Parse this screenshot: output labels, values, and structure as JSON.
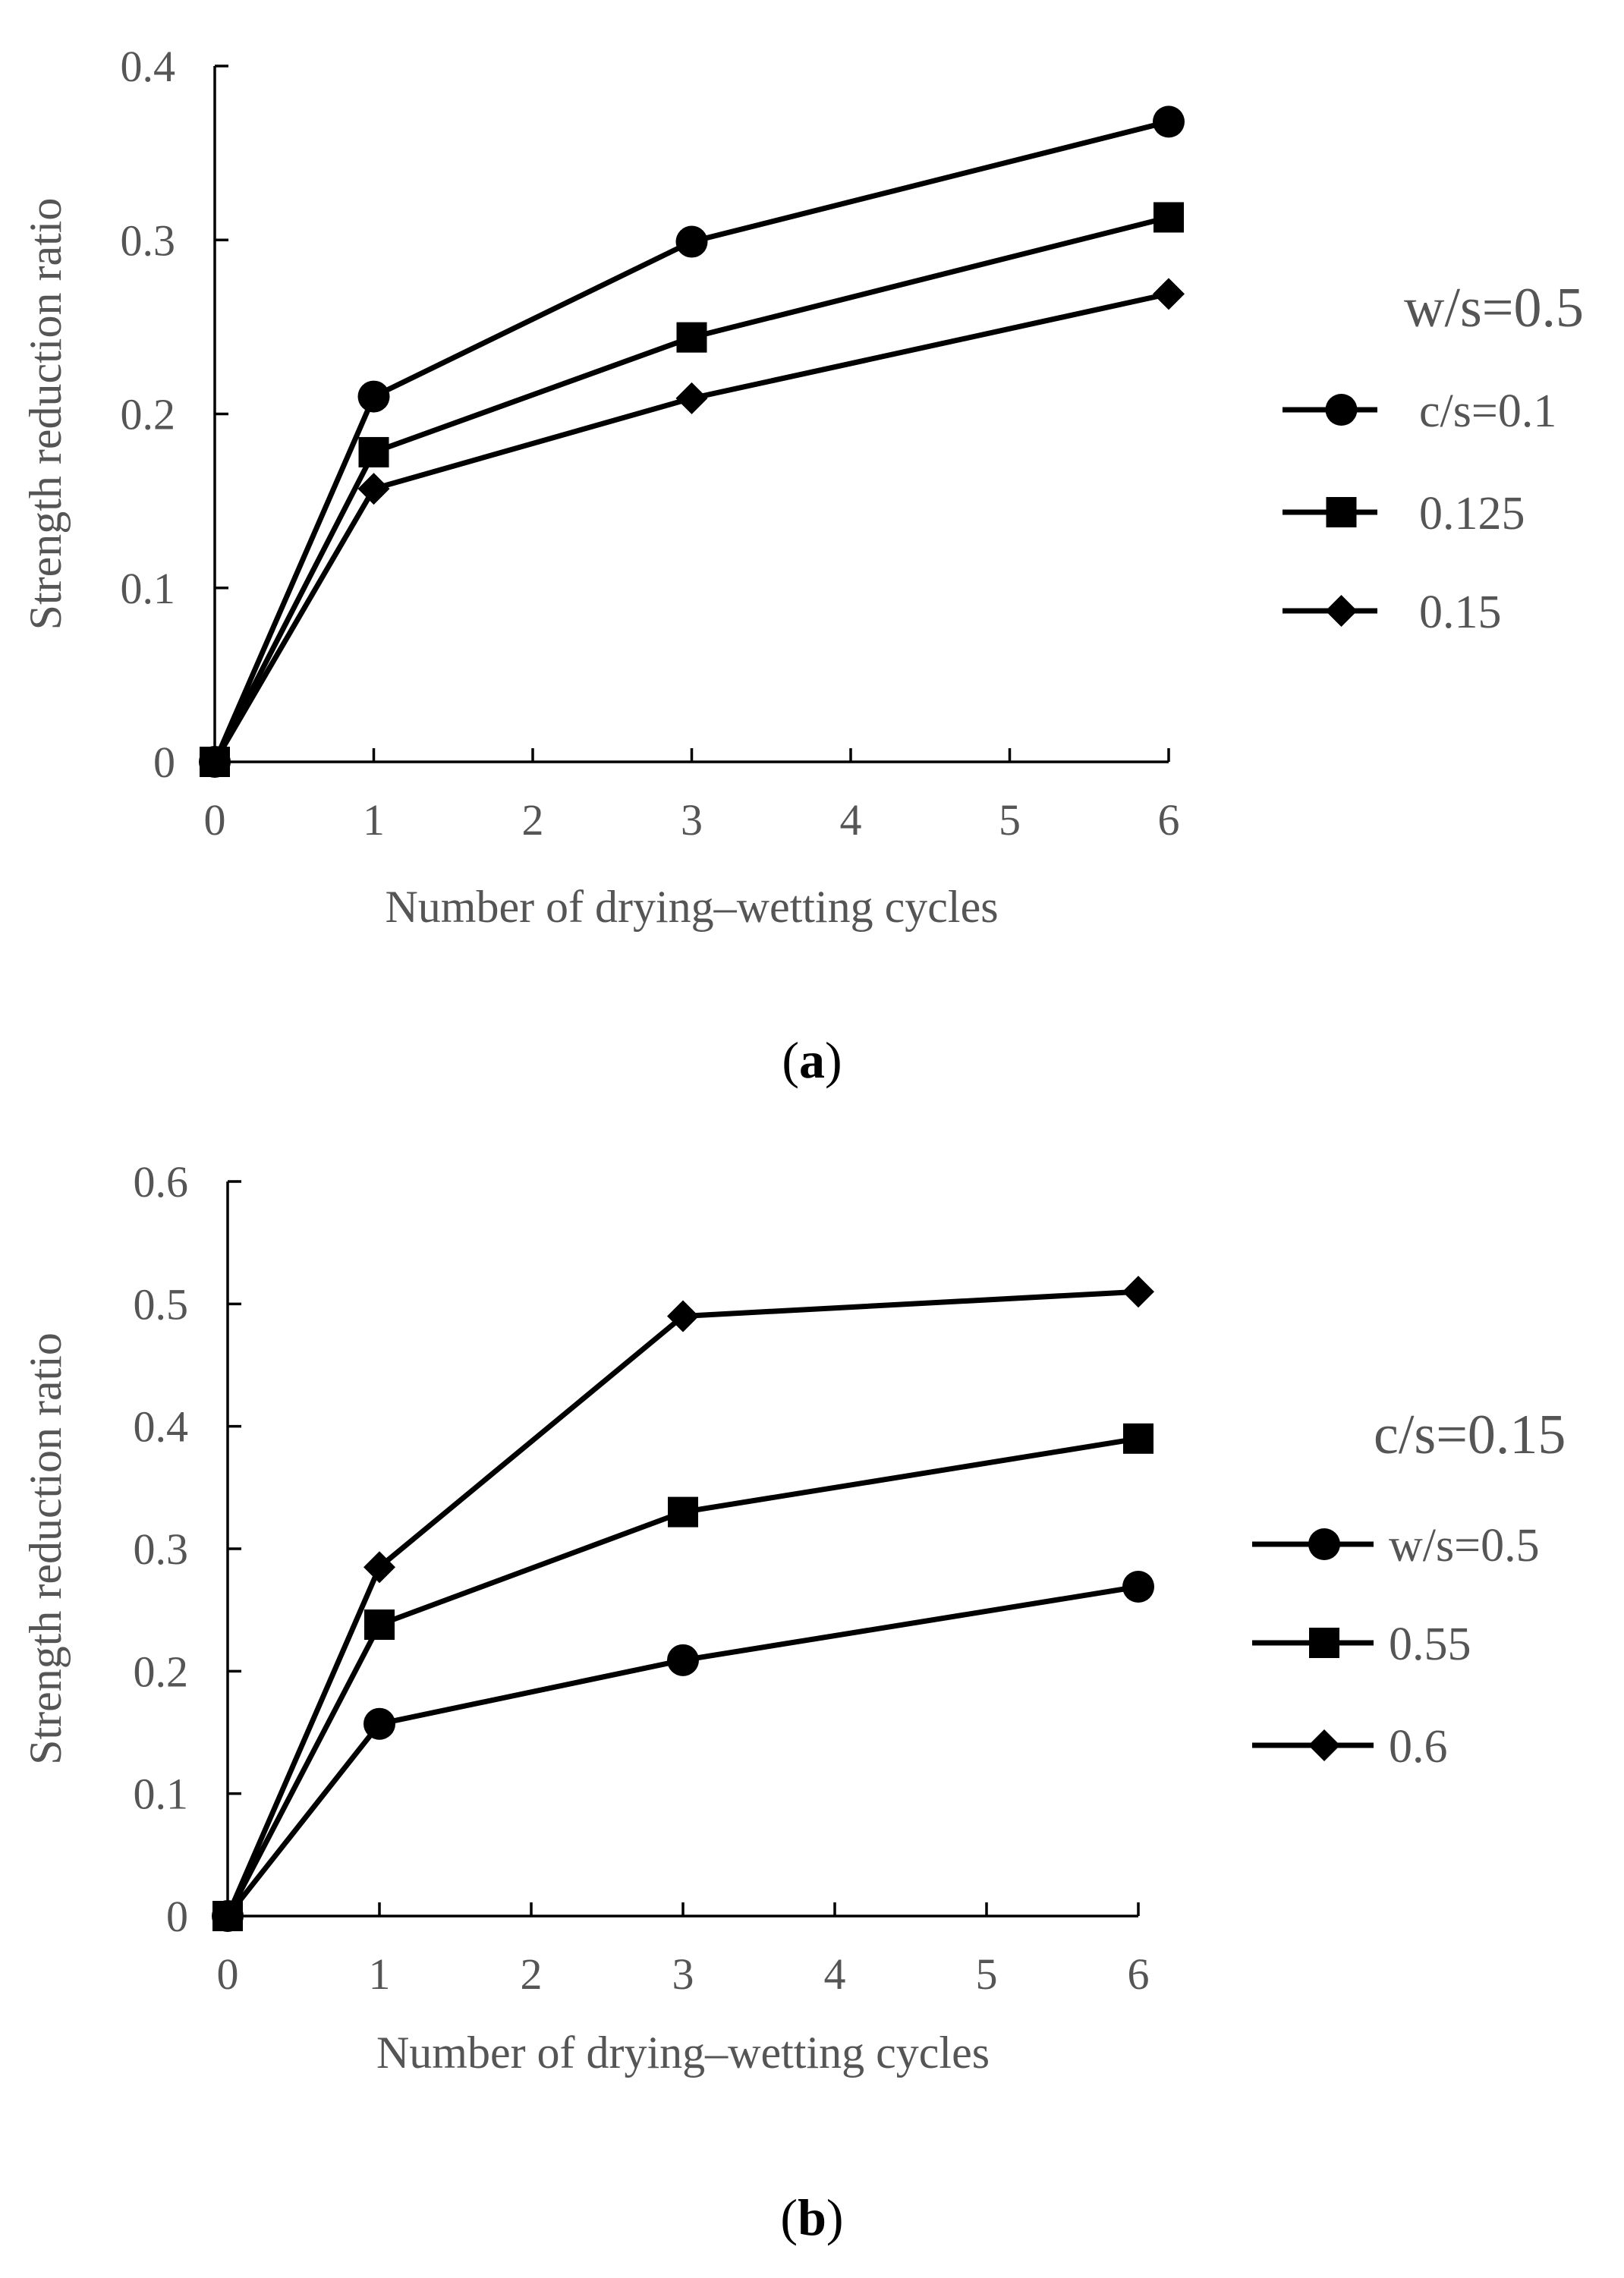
{
  "chart_data": [
    {
      "type": "line",
      "panel": "a",
      "caption": {
        "open": "(",
        "letter": "a",
        "close": ")"
      },
      "xlabel": "Number of drying–wetting cycles",
      "ylabel": "Strength reduction ratio",
      "xlim": [
        0,
        6
      ],
      "ylim": [
        0,
        0.4
      ],
      "xticks": [
        0,
        1,
        2,
        3,
        4,
        5,
        6
      ],
      "xtick_labels": [
        "0",
        "1",
        "2",
        "3",
        "4",
        "5",
        "6"
      ],
      "yticks": [
        0,
        0.1,
        0.2,
        0.3,
        0.4
      ],
      "ytick_labels": [
        "0",
        "0.1",
        "0.2",
        "0.3",
        "0.4"
      ],
      "legend_title": "w/s=0.5",
      "legend_position": "right",
      "series": [
        {
          "name": "c/s=0.1",
          "marker": "circle",
          "x": [
            0,
            1,
            3,
            6
          ],
          "y": [
            0,
            0.21,
            0.299,
            0.368
          ]
        },
        {
          "name": "0.125",
          "marker": "square",
          "x": [
            0,
            1,
            3,
            6
          ],
          "y": [
            0,
            0.178,
            0.244,
            0.313
          ]
        },
        {
          "name": "0.15",
          "marker": "diamond",
          "x": [
            0,
            1,
            3,
            6
          ],
          "y": [
            0,
            0.157,
            0.209,
            0.269
          ]
        }
      ]
    },
    {
      "type": "line",
      "panel": "b",
      "caption": {
        "open": "(",
        "letter": "b",
        "close": ")"
      },
      "xlabel": "Number of drying–wetting cycles",
      "ylabel": "Strength reduction ratio",
      "xlim": [
        0,
        6
      ],
      "ylim": [
        0,
        0.6
      ],
      "xticks": [
        0,
        1,
        2,
        3,
        4,
        5,
        6
      ],
      "xtick_labels": [
        "0",
        "1",
        "2",
        "3",
        "4",
        "5",
        "6"
      ],
      "yticks": [
        0,
        0.1,
        0.2,
        0.3,
        0.4,
        0.5,
        0.6
      ],
      "ytick_labels": [
        "0",
        "0.1",
        "0.2",
        "0.3",
        "0.4",
        "0.5",
        "0.6"
      ],
      "legend_title": "c/s=0.15",
      "legend_position": "right",
      "series": [
        {
          "name": "w/s=0.5",
          "marker": "circle",
          "x": [
            0,
            1,
            3,
            6
          ],
          "y": [
            0,
            0.157,
            0.209,
            0.269
          ]
        },
        {
          "name": "0.55",
          "marker": "square",
          "x": [
            0,
            1,
            3,
            6
          ],
          "y": [
            0,
            0.238,
            0.33,
            0.39
          ]
        },
        {
          "name": "0.6",
          "marker": "diamond",
          "x": [
            0,
            1,
            3,
            6
          ],
          "y": [
            0,
            0.285,
            0.49,
            0.51
          ]
        }
      ]
    }
  ]
}
